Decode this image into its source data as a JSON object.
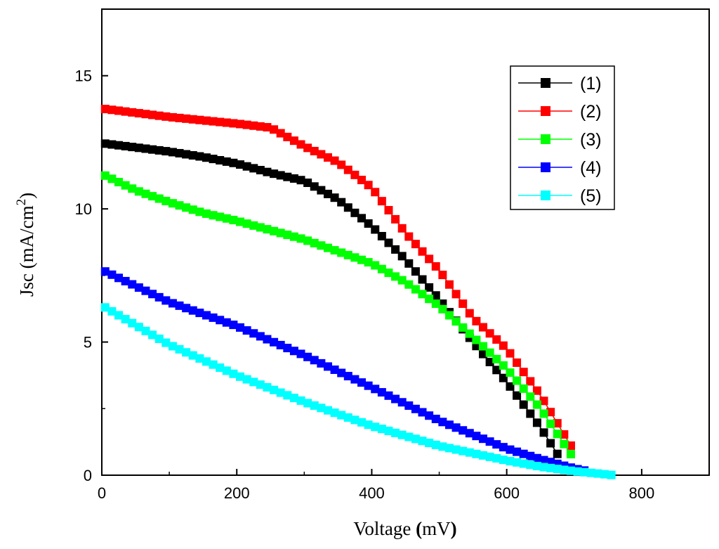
{
  "chart_data": {
    "type": "line",
    "title": "",
    "xlabel_main": "Voltage ",
    "xlabel_paren_open": "(",
    "xlabel_unit": "mV",
    "xlabel_paren_close": ")",
    "ylabel_main": "Jsc (mA/cm",
    "ylabel_sup": "2",
    "ylabel_close": ")",
    "xlim": [
      0,
      900
    ],
    "ylim": [
      0,
      17.5
    ],
    "xticks": [
      0,
      200,
      400,
      600,
      800
    ],
    "yticks": [
      0,
      5,
      10,
      15
    ],
    "legend_position": "top-right",
    "series": [
      {
        "name": "(1)",
        "color": "#000000",
        "x": [
          5,
          100,
          150,
          200,
          250,
          300,
          350,
          400,
          450,
          500,
          550,
          600,
          650,
          680
        ],
        "y": [
          12.45,
          12.15,
          11.95,
          11.7,
          11.35,
          11.05,
          10.35,
          9.35,
          8.1,
          6.6,
          5.0,
          3.5,
          1.8,
          0.6
        ]
      },
      {
        "name": "(2)",
        "color": "#ff0000",
        "x": [
          5,
          100,
          200,
          250,
          300,
          350,
          400,
          450,
          500,
          550,
          600,
          650,
          700
        ],
        "y": [
          13.75,
          13.45,
          13.2,
          13.05,
          12.35,
          11.75,
          10.8,
          9.1,
          7.7,
          5.9,
          4.75,
          3.0,
          0.9
        ]
      },
      {
        "name": "(3)",
        "color": "#00ff00",
        "x": [
          5,
          50,
          100,
          150,
          200,
          250,
          300,
          350,
          400,
          450,
          500,
          550,
          600,
          650,
          700
        ],
        "y": [
          11.25,
          10.7,
          10.25,
          9.85,
          9.55,
          9.2,
          8.85,
          8.4,
          7.95,
          7.25,
          6.35,
          5.2,
          4.0,
          2.5,
          0.6
        ]
      },
      {
        "name": "(4)",
        "color": "#0000ff",
        "x": [
          5,
          100,
          200,
          300,
          400,
          500,
          600,
          650,
          700,
          720
        ],
        "y": [
          7.65,
          6.5,
          5.6,
          4.5,
          3.3,
          2.05,
          1.0,
          0.6,
          0.25,
          0.15
        ]
      },
      {
        "name": "(5)",
        "color": "#00ffff",
        "x": [
          5,
          100,
          200,
          300,
          400,
          500,
          600,
          650,
          700,
          740,
          758
        ],
        "y": [
          6.3,
          4.9,
          3.75,
          2.75,
          1.85,
          1.1,
          0.55,
          0.32,
          0.15,
          0.05,
          0.0
        ]
      }
    ]
  }
}
